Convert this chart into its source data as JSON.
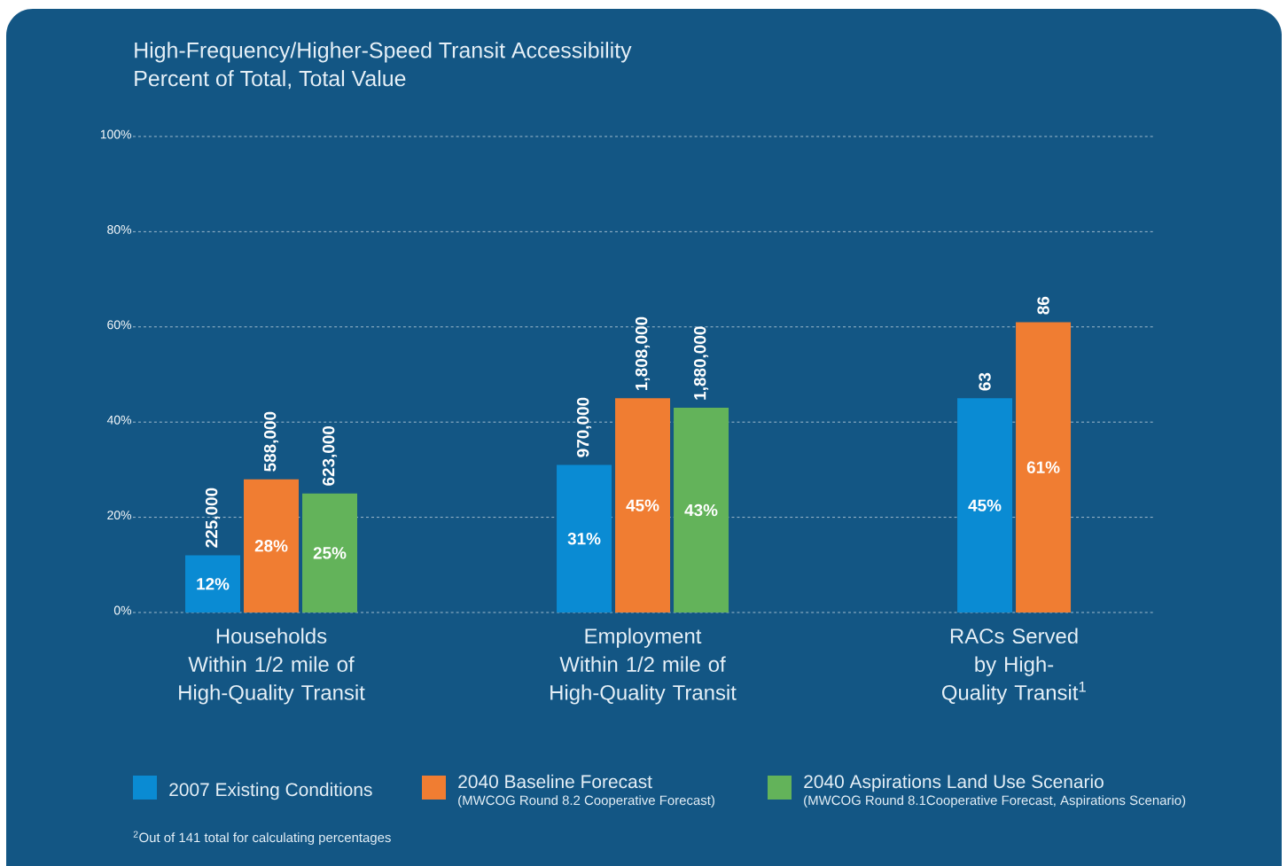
{
  "chart_data": {
    "type": "bar",
    "title": "High-Frequency/Higher-Speed Transit Accessibility",
    "subtitle": "Percent of Total, Total Value",
    "categories": [
      "Households Within 1/2 mile of High-Quality Transit",
      "Employment Within 1/2 mile of High-Quality Transit",
      "RACs Served by High-Quality Transit$^{1}$"
    ],
    "series": [
      {
        "name": "2007 Existing Conditions",
        "color": "#0a8bd3",
        "values": [
          12,
          31,
          45
        ],
        "value_labels": [
          "12%",
          "31%",
          "45%"
        ]
      },
      {
        "name": "2040 Baseline Forecast",
        "color": "#f07d32",
        "values": [
          28,
          45,
          61
        ],
        "value_labels": [
          "28%",
          "45%",
          "61%"
        ]
      },
      {
        "name": "2040 Aspirations Land Use Scenario",
        "color": "#63b35a",
        "values": [
          25,
          43,
          null
        ],
        "value_labels": [
          "25%",
          "43%",
          null
        ]
      }
    ],
    "ylim": [
      0,
      100
    ],
    "yticks": [
      {
        "value": 0,
        "label": "0%"
      },
      {
        "value": 20,
        "label": "20%"
      },
      {
        "value": 40,
        "label": "40%"
      },
      {
        "value": 60,
        "label": "60%"
      },
      {
        "value": 80,
        "label": "80%"
      },
      {
        "value": 100,
        "label": "100%"
      }
    ],
    "grid": "y",
    "legend": "bottom",
    "annotations": [
      "(MWCOG Round 8.2 Cooperative Forecast)",
      "(MWCOG Round 8.1Cooperative Forecast, Aspirations Scenario)",
      "$^{2}$Out of 141 total for calculating percentages",
      "225,000",
      "588,000",
      "623,000",
      "970,000",
      "1,808,000",
      "1,880,000",
      "63",
      "86"
    ]
  }
}
